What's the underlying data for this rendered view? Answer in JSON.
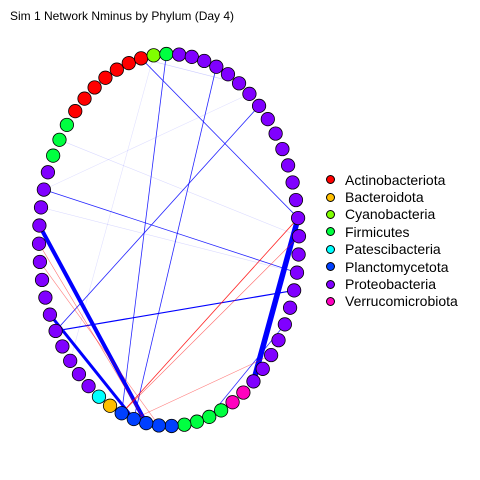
{
  "title": "Sim 1 Network Nminus by Phylum (Day 4)",
  "legend": [
    {
      "name": "Actinobacteriota",
      "color": "#ff0000"
    },
    {
      "name": "Bacteroidota",
      "color": "#ffbf00"
    },
    {
      "name": "Cyanobacteria",
      "color": "#80ff00"
    },
    {
      "name": "Firmicutes",
      "color": "#00ff40"
    },
    {
      "name": "Patescibacteria",
      "color": "#00ffff"
    },
    {
      "name": "Planctomycetota",
      "color": "#0040ff"
    },
    {
      "name": "Proteobacteria",
      "color": "#8000ff"
    },
    {
      "name": "Verrucomicrobiota",
      "color": "#ff00bf"
    }
  ],
  "nodes": [
    {
      "phylum": "Proteobacteria"
    },
    {
      "phylum": "Proteobacteria"
    },
    {
      "phylum": "Proteobacteria"
    },
    {
      "phylum": "Proteobacteria"
    },
    {
      "phylum": "Proteobacteria"
    },
    {
      "phylum": "Proteobacteria"
    },
    {
      "phylum": "Proteobacteria"
    },
    {
      "phylum": "Proteobacteria"
    },
    {
      "phylum": "Proteobacteria"
    },
    {
      "phylum": "Proteobacteria"
    },
    {
      "phylum": "Proteobacteria"
    },
    {
      "phylum": "Proteobacteria"
    },
    {
      "phylum": "Proteobacteria"
    },
    {
      "phylum": "Proteobacteria"
    },
    {
      "phylum": "Proteobacteria"
    },
    {
      "phylum": "Proteobacteria"
    },
    {
      "phylum": "Proteobacteria"
    },
    {
      "phylum": "Proteobacteria"
    },
    {
      "phylum": "Proteobacteria"
    },
    {
      "phylum": "Proteobacteria"
    },
    {
      "phylum": "Proteobacteria"
    },
    {
      "phylum": "Verrucomicrobiota"
    },
    {
      "phylum": "Verrucomicrobiota"
    },
    {
      "phylum": "Firmicutes"
    },
    {
      "phylum": "Firmicutes"
    },
    {
      "phylum": "Firmicutes"
    },
    {
      "phylum": "Firmicutes"
    },
    {
      "phylum": "Planctomycetota"
    },
    {
      "phylum": "Planctomycetota"
    },
    {
      "phylum": "Planctomycetota"
    },
    {
      "phylum": "Planctomycetota"
    },
    {
      "phylum": "Planctomycetota"
    },
    {
      "phylum": "Bacteroidota"
    },
    {
      "phylum": "Patescibacteria"
    },
    {
      "phylum": "Proteobacteria"
    },
    {
      "phylum": "Proteobacteria"
    },
    {
      "phylum": "Proteobacteria"
    },
    {
      "phylum": "Proteobacteria"
    },
    {
      "phylum": "Proteobacteria"
    },
    {
      "phylum": "Proteobacteria"
    },
    {
      "phylum": "Proteobacteria"
    },
    {
      "phylum": "Proteobacteria"
    },
    {
      "phylum": "Proteobacteria"
    },
    {
      "phylum": "Proteobacteria"
    },
    {
      "phylum": "Proteobacteria"
    },
    {
      "phylum": "Proteobacteria"
    },
    {
      "phylum": "Proteobacteria"
    },
    {
      "phylum": "Proteobacteria"
    },
    {
      "phylum": "Firmicutes"
    },
    {
      "phylum": "Firmicutes"
    },
    {
      "phylum": "Firmicutes"
    },
    {
      "phylum": "Actinobacteriota"
    },
    {
      "phylum": "Actinobacteriota"
    },
    {
      "phylum": "Actinobacteriota"
    },
    {
      "phylum": "Actinobacteriota"
    },
    {
      "phylum": "Actinobacteriota"
    },
    {
      "phylum": "Actinobacteriota"
    },
    {
      "phylum": "Actinobacteriota"
    },
    {
      "phylum": "Cyanobacteria"
    },
    {
      "phylum": "Firmicutes"
    },
    {
      "phylum": "Proteobacteria"
    },
    {
      "phylum": "Proteobacteria"
    },
    {
      "phylum": "Proteobacteria"
    },
    {
      "phylum": "Proteobacteria"
    }
  ],
  "edges": [
    {
      "from": 20,
      "to": 10,
      "weight": 5.5,
      "color": "#0000ff",
      "opacity": 1
    },
    {
      "from": 44,
      "to": 29,
      "weight": 4.0,
      "color": "#0000ff",
      "opacity": 1
    },
    {
      "from": 39,
      "to": 30,
      "weight": 3.0,
      "color": "#0000ff",
      "opacity": 1
    },
    {
      "from": 38,
      "to": 14,
      "weight": 1.2,
      "color": "#0000ff",
      "opacity": 1
    },
    {
      "from": 57,
      "to": 10,
      "weight": 0.8,
      "color": "#0000ff",
      "opacity": 0.85
    },
    {
      "from": 46,
      "to": 13,
      "weight": 0.8,
      "color": "#0000ff",
      "opacity": 0.85
    },
    {
      "from": 59,
      "to": 31,
      "weight": 0.8,
      "color": "#0000ff",
      "opacity": 0.85
    },
    {
      "from": 63,
      "to": 30,
      "weight": 0.8,
      "color": "#0000ff",
      "opacity": 0.85
    },
    {
      "from": 3,
      "to": 38,
      "weight": 0.8,
      "color": "#0000ff",
      "opacity": 0.85
    },
    {
      "from": 16,
      "to": 24,
      "weight": 0.8,
      "color": "#0000ff",
      "opacity": 0.8
    },
    {
      "from": 10,
      "to": 31,
      "weight": 0.8,
      "color": "#ff0000",
      "opacity": 0.85
    },
    {
      "from": 11,
      "to": 31,
      "weight": 0.6,
      "color": "#ff0000",
      "opacity": 0.6
    },
    {
      "from": 43,
      "to": 29,
      "weight": 0.6,
      "color": "#ff0000",
      "opacity": 0.55
    },
    {
      "from": 42,
      "to": 28,
      "weight": 0.6,
      "color": "#ff0000",
      "opacity": 0.5
    },
    {
      "from": 18,
      "to": 30,
      "weight": 0.6,
      "color": "#ff0000",
      "opacity": 0.5
    },
    {
      "from": 1,
      "to": 57,
      "weight": 0.6,
      "color": "#0000ff",
      "opacity": 0.2
    },
    {
      "from": 45,
      "to": 13,
      "weight": 0.6,
      "color": "#0000ff",
      "opacity": 0.15
    },
    {
      "from": 49,
      "to": 11,
      "weight": 0.6,
      "color": "#0000ff",
      "opacity": 0.15
    },
    {
      "from": 2,
      "to": 46,
      "weight": 0.6,
      "color": "#0000ff",
      "opacity": 0.12
    },
    {
      "from": 58,
      "to": 36,
      "weight": 0.6,
      "color": "#0000ff",
      "opacity": 0.12
    }
  ]
}
